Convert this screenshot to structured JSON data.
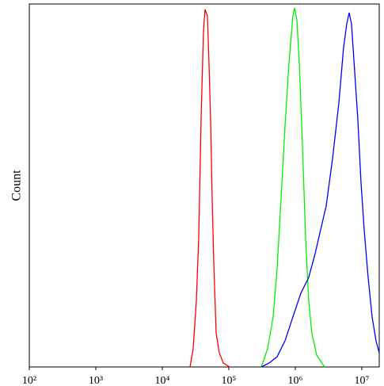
{
  "chart_data": {
    "type": "line",
    "ylabel": "Count",
    "xscale": "log",
    "xlim": [
      100,
      18300000
    ],
    "ylim": [
      0,
      100
    ],
    "xticks": [
      {
        "value": 100,
        "label": "10²"
      },
      {
        "value": 1000,
        "label": "10³"
      },
      {
        "value": 10000,
        "label": "10⁴"
      },
      {
        "value": 100000,
        "label": "10⁵"
      },
      {
        "value": 1000000,
        "label": "10⁶"
      },
      {
        "value": 10000000,
        "label": "10⁷"
      }
    ],
    "series": [
      {
        "color": "#ff0000",
        "x": [
          26100,
          29100,
          32500,
          35300,
          38300,
          41600,
          43900,
          47700,
          50400,
          53200,
          56200,
          59400,
          64500,
          71900,
          82600,
          103000
        ],
        "values": [
          0,
          5.0,
          18.1,
          35.6,
          68.3,
          92.4,
          98.5,
          96.7,
          83.6,
          68.3,
          46.5,
          29.0,
          9.4,
          3.9,
          1.1,
          0
        ]
      },
      {
        "color": "#00ee00",
        "x": [
          308000,
          383000,
          464000,
          532000,
          611000,
          700000,
          803000,
          920000,
          973000,
          1057000,
          1148000,
          1279000,
          1429000,
          1592000,
          1778000,
          2094000,
          2754000
        ],
        "values": [
          0,
          5.0,
          13.8,
          26.9,
          46.5,
          66.2,
          83.6,
          96.7,
          98.9,
          95.6,
          83.6,
          61.6,
          35.4,
          18.1,
          9.2,
          3.3,
          0
        ]
      },
      {
        "color": "#0000ee",
        "x": [
          308000,
          405000,
          532000,
          700000,
          920000,
          1211000,
          1592000,
          1986000,
          2404000,
          2911000,
          3631000,
          4519000,
          5321000,
          5943000,
          6452000,
          7000000,
          7812000,
          8713000,
          9727000,
          10860000,
          12450000,
          14290000,
          16370000,
          18280000
        ],
        "values": [
          0,
          1.1,
          2.8,
          7.2,
          13.8,
          20.3,
          24.7,
          31.2,
          37.8,
          44.3,
          57.4,
          72.7,
          88.0,
          94.5,
          97.6,
          94.5,
          81.4,
          68.3,
          50.9,
          37.8,
          24.7,
          13.8,
          7.2,
          3.9
        ]
      }
    ]
  }
}
